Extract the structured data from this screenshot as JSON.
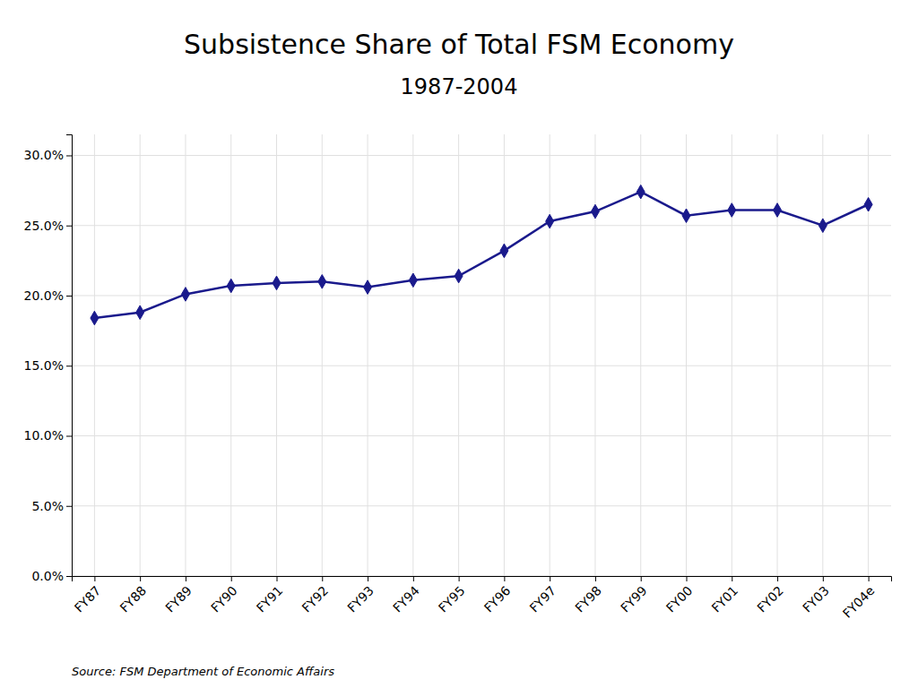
{
  "chart_data": {
    "type": "line",
    "title": "Subsistence Share of Total FSM Economy",
    "subtitle": "1987-2004",
    "source": "Source: FSM Department of Economic Affairs",
    "categories": [
      "FY87",
      "FY88",
      "FY89",
      "FY90",
      "FY91",
      "FY92",
      "FY93",
      "FY94",
      "FY95",
      "FY96",
      "FY97",
      "FY98",
      "FY99",
      "FY00",
      "FY01",
      "FY02",
      "FY03",
      "FY04e"
    ],
    "values": [
      0.184,
      0.188,
      0.201,
      0.207,
      0.209,
      0.21,
      0.206,
      0.211,
      0.214,
      0.232,
      0.253,
      0.26,
      0.274,
      0.257,
      0.261,
      0.261,
      0.25,
      0.265
    ],
    "color": "#1a1a8c",
    "marker": "diamond",
    "ylim": [
      0.0,
      0.315
    ],
    "yticks": [
      {
        "value": 0.0,
        "label": "0.0%"
      },
      {
        "value": 0.05,
        "label": "5.0%"
      },
      {
        "value": 0.1,
        "label": "10.0%"
      },
      {
        "value": 0.15,
        "label": "15.0%"
      },
      {
        "value": 0.2,
        "label": "20.0%"
      },
      {
        "value": 0.25,
        "label": "25.0%"
      },
      {
        "value": 0.3,
        "label": "30.0%"
      }
    ],
    "grid": true
  }
}
